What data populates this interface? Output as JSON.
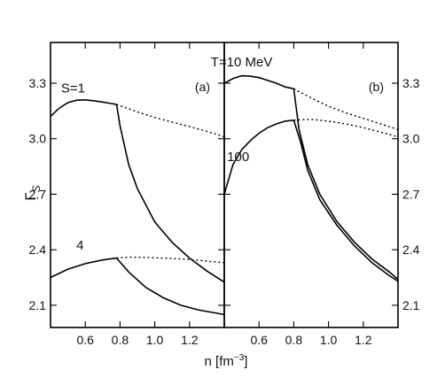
{
  "chart_data": {
    "type": "line",
    "ylabel": "Γ",
    "ylabel_subscript": "S",
    "xlabel": "n [fm",
    "xlabel_sup": "−3",
    "xlabel_close": "]",
    "xlim": [
      0.4,
      1.4
    ],
    "ylim": [
      1.98,
      3.52
    ],
    "yticks": [
      2.1,
      2.4,
      2.7,
      3.0,
      3.3
    ],
    "ytick_labels": [
      "2.1",
      "2.4",
      "2.7",
      "3.0",
      "3.3"
    ],
    "xticks": [
      0.6,
      0.8,
      1.0,
      1.2
    ],
    "xtick_labels": [
      "0.6",
      "0.8",
      "1.0",
      "1.2"
    ],
    "grid": false,
    "panels": [
      {
        "id": "a",
        "label": "(a)",
        "annotations": [
          {
            "text": "S=1",
            "x": 0.53,
            "y": 3.25
          },
          {
            "text": "4",
            "x": 0.57,
            "y": 2.4
          }
        ],
        "series": [
          {
            "style": "solid",
            "x": [
              0.4,
              0.45,
              0.5,
              0.55,
              0.6,
              0.65,
              0.7,
              0.75,
              0.78
            ],
            "y": [
              3.12,
              3.165,
              3.195,
              3.208,
              3.21,
              3.205,
              3.198,
              3.19,
              3.185
            ]
          },
          {
            "style": "dotted",
            "x": [
              0.78,
              0.9,
              1.0,
              1.1,
              1.2,
              1.3,
              1.4
            ],
            "y": [
              3.185,
              3.145,
              3.115,
              3.09,
              3.065,
              3.04,
              3.01
            ]
          },
          {
            "style": "solid",
            "x": [
              0.78,
              0.8,
              0.85,
              0.9,
              1.0,
              1.1,
              1.2,
              1.3,
              1.4
            ],
            "y": [
              3.185,
              3.07,
              2.86,
              2.73,
              2.55,
              2.44,
              2.355,
              2.285,
              2.225
            ]
          },
          {
            "style": "solid",
            "x": [
              0.4,
              0.5,
              0.6,
              0.7,
              0.78
            ],
            "y": [
              2.25,
              2.295,
              2.325,
              2.345,
              2.355
            ]
          },
          {
            "style": "dotted",
            "x": [
              0.78,
              0.85,
              0.95,
              1.05,
              1.15,
              1.25,
              1.4
            ],
            "y": [
              2.355,
              2.36,
              2.358,
              2.355,
              2.35,
              2.343,
              2.33
            ]
          },
          {
            "style": "solid",
            "x": [
              0.78,
              0.85,
              0.95,
              1.05,
              1.15,
              1.25,
              1.4
            ],
            "y": [
              2.355,
              2.28,
              2.195,
              2.14,
              2.1,
              2.075,
              2.05
            ]
          }
        ]
      },
      {
        "id": "b",
        "label": "(b)",
        "annotations": [
          {
            "text": "T=10 MeV",
            "x": 0.5,
            "y": 3.39
          },
          {
            "text": "100",
            "x": 0.48,
            "y": 2.88
          }
        ],
        "series": [
          {
            "style": "solid",
            "x": [
              0.4,
              0.45,
              0.5,
              0.55,
              0.6,
              0.65,
              0.7,
              0.75,
              0.8
            ],
            "y": [
              3.3,
              3.325,
              3.34,
              3.338,
              3.33,
              3.315,
              3.3,
              3.28,
              3.27
            ]
          },
          {
            "style": "dotted",
            "x": [
              0.8,
              0.9,
              1.0,
              1.1,
              1.2,
              1.3,
              1.4
            ],
            "y": [
              3.27,
              3.22,
              3.175,
              3.14,
              3.11,
              3.08,
              3.05
            ]
          },
          {
            "style": "solid",
            "x": [
              0.8,
              0.83,
              0.88,
              0.95,
              1.05,
              1.15,
              1.25,
              1.35,
              1.4
            ],
            "y": [
              3.27,
              3.05,
              2.86,
              2.7,
              2.55,
              2.44,
              2.35,
              2.28,
              2.24
            ]
          },
          {
            "style": "solid",
            "x": [
              0.4,
              0.45,
              0.5,
              0.55,
              0.6,
              0.65,
              0.7,
              0.75,
              0.8
            ],
            "y": [
              2.7,
              2.86,
              2.94,
              2.99,
              3.03,
              3.06,
              3.08,
              3.095,
              3.1
            ]
          },
          {
            "style": "dotted",
            "x": [
              0.8,
              0.9,
              1.0,
              1.1,
              1.2,
              1.3,
              1.4
            ],
            "y": [
              3.1,
              3.105,
              3.095,
              3.08,
              3.06,
              3.035,
              3.01
            ]
          },
          {
            "style": "solid",
            "x": [
              0.8,
              0.84,
              0.88,
              0.95,
              1.05,
              1.15,
              1.25,
              1.35,
              1.4
            ],
            "y": [
              3.1,
              2.98,
              2.83,
              2.67,
              2.53,
              2.42,
              2.33,
              2.26,
              2.23
            ]
          }
        ]
      }
    ]
  }
}
